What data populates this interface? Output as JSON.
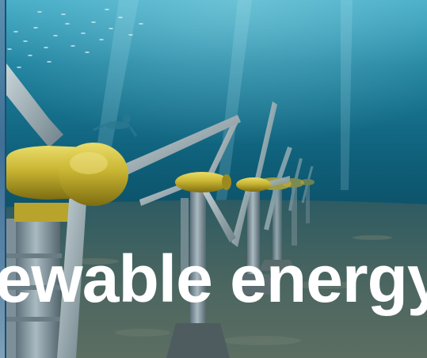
{
  "image": {
    "caption": "Renewable energy"
  },
  "colors": {
    "water_deep": "#0b4a63",
    "water_surface": "#3fa9c4",
    "seabed": "#3f5a55",
    "nacelle": "#c9b531",
    "blade": "#9fb1b7",
    "tower": "#8d9fa8",
    "caption_text": "#ffffff"
  },
  "icons": [
    "diver-figure",
    "fish-school",
    "tidal-turbine"
  ]
}
